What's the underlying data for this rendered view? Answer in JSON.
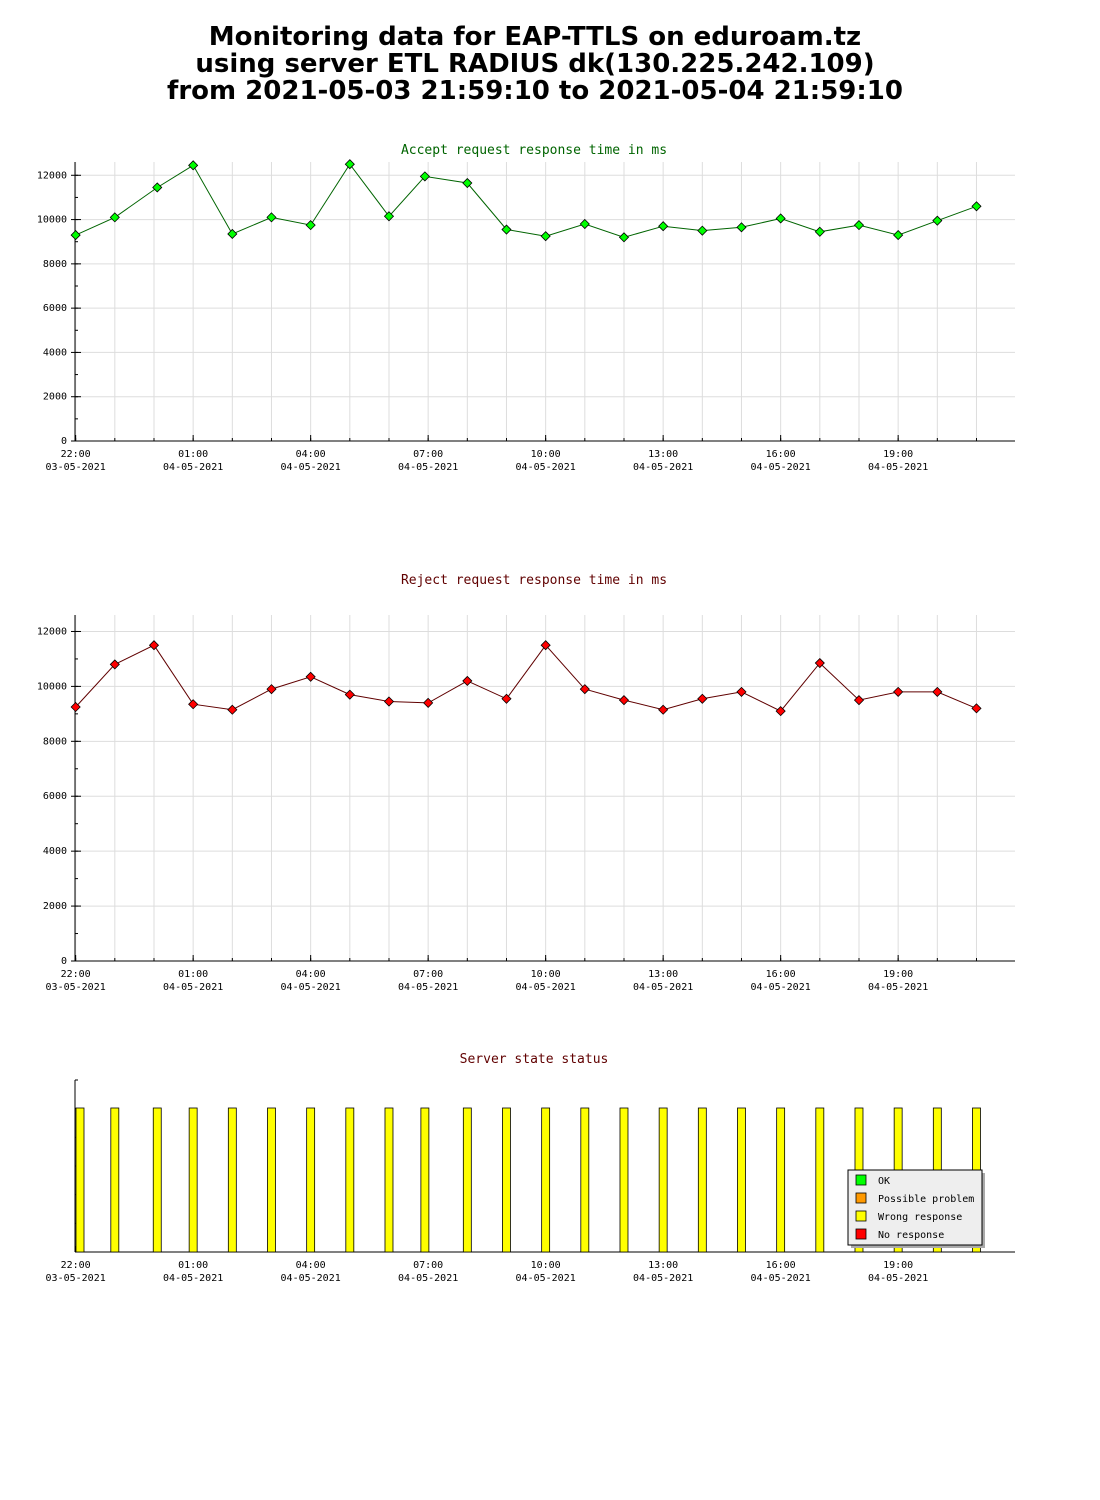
{
  "title": {
    "line1": "Monitoring data for EAP-TTLS on eduroam.tz",
    "line2": "using server ETL RADIUS dk(130.225.242.109)",
    "line3": "from 2021-05-03 21:59:10 to 2021-05-04 21:59:10"
  },
  "colors": {
    "accept_series": "#006400",
    "accept_marker": "#00ff00",
    "reject_series": "#600000",
    "reject_marker": "#ff0000",
    "status_bar": "#ffff00",
    "grid": "#dddddd"
  },
  "x_ticks": [
    {
      "time": "22:00",
      "date": "03-05-2021"
    },
    {
      "time": "01:00",
      "date": "04-05-2021"
    },
    {
      "time": "04:00",
      "date": "04-05-2021"
    },
    {
      "time": "07:00",
      "date": "04-05-2021"
    },
    {
      "time": "10:00",
      "date": "04-05-2021"
    },
    {
      "time": "13:00",
      "date": "04-05-2021"
    },
    {
      "time": "16:00",
      "date": "04-05-2021"
    },
    {
      "time": "19:00",
      "date": "04-05-2021"
    }
  ],
  "chart_data": [
    {
      "type": "line",
      "title": "Accept request response time in ms",
      "x_range": [
        "2021-05-03 21:59",
        "2021-05-04 21:59"
      ],
      "ylim": [
        0,
        12600
      ],
      "y_ticks": [
        0,
        2000,
        4000,
        6000,
        8000,
        10000,
        12000
      ],
      "grid": true,
      "series": [
        {
          "points": [
            {
              "t": "2021-05-03 22:00",
              "y": 9300
            },
            {
              "t": "2021-05-03 23:00",
              "y": 10100
            },
            {
              "t": "2021-05-04 00:05",
              "y": 11450
            },
            {
              "t": "2021-05-04 01:00",
              "y": 12450
            },
            {
              "t": "2021-05-04 02:00",
              "y": 9350
            },
            {
              "t": "2021-05-04 03:00",
              "y": 10100
            },
            {
              "t": "2021-05-04 04:00",
              "y": 9750
            },
            {
              "t": "2021-05-04 05:00",
              "y": 12500
            },
            {
              "t": "2021-05-04 06:00",
              "y": 10150
            },
            {
              "t": "2021-05-04 06:55",
              "y": 11950
            },
            {
              "t": "2021-05-04 08:00",
              "y": 11650
            },
            {
              "t": "2021-05-04 09:00",
              "y": 9550
            },
            {
              "t": "2021-05-04 10:00",
              "y": 9250
            },
            {
              "t": "2021-05-04 11:00",
              "y": 9800
            },
            {
              "t": "2021-05-04 12:00",
              "y": 9200
            },
            {
              "t": "2021-05-04 13:00",
              "y": 9700
            },
            {
              "t": "2021-05-04 14:00",
              "y": 9500
            },
            {
              "t": "2021-05-04 15:00",
              "y": 9650
            },
            {
              "t": "2021-05-04 16:00",
              "y": 10050
            },
            {
              "t": "2021-05-04 17:00",
              "y": 9450
            },
            {
              "t": "2021-05-04 18:00",
              "y": 9750
            },
            {
              "t": "2021-05-04 19:00",
              "y": 9300
            },
            {
              "t": "2021-05-04 20:00",
              "y": 9950
            },
            {
              "t": "2021-05-04 21:00",
              "y": 10600
            }
          ]
        }
      ]
    },
    {
      "type": "line",
      "title": "Reject request response time in ms",
      "x_range": [
        "2021-05-03 21:59",
        "2021-05-04 21:59"
      ],
      "ylim": [
        0,
        12600
      ],
      "y_ticks": [
        0,
        2000,
        4000,
        6000,
        8000,
        10000,
        12000
      ],
      "grid": true,
      "series": [
        {
          "points": [
            {
              "t": "2021-05-03 22:00",
              "y": 9250
            },
            {
              "t": "2021-05-03 23:00",
              "y": 10800
            },
            {
              "t": "2021-05-04 00:00",
              "y": 11500
            },
            {
              "t": "2021-05-04 01:00",
              "y": 9350
            },
            {
              "t": "2021-05-04 02:00",
              "y": 9150
            },
            {
              "t": "2021-05-04 03:00",
              "y": 9900
            },
            {
              "t": "2021-05-04 04:00",
              "y": 10350
            },
            {
              "t": "2021-05-04 05:00",
              "y": 9700
            },
            {
              "t": "2021-05-04 06:00",
              "y": 9450
            },
            {
              "t": "2021-05-04 07:00",
              "y": 9400
            },
            {
              "t": "2021-05-04 08:00",
              "y": 10200
            },
            {
              "t": "2021-05-04 09:00",
              "y": 9550
            },
            {
              "t": "2021-05-04 10:00",
              "y": 11500
            },
            {
              "t": "2021-05-04 11:00",
              "y": 9900
            },
            {
              "t": "2021-05-04 12:00",
              "y": 9500
            },
            {
              "t": "2021-05-04 13:00",
              "y": 9150
            },
            {
              "t": "2021-05-04 14:00",
              "y": 9550
            },
            {
              "t": "2021-05-04 15:00",
              "y": 9800
            },
            {
              "t": "2021-05-04 16:00",
              "y": 9100
            },
            {
              "t": "2021-05-04 17:00",
              "y": 10850
            },
            {
              "t": "2021-05-04 18:00",
              "y": 9500
            },
            {
              "t": "2021-05-04 19:00",
              "y": 9800
            },
            {
              "t": "2021-05-04 20:00",
              "y": 9800
            },
            {
              "t": "2021-05-04 21:00",
              "y": 9200
            }
          ]
        }
      ]
    },
    {
      "type": "bar",
      "title": "Server state status",
      "x_range": [
        "2021-05-03 21:59",
        "2021-05-04 21:59"
      ],
      "legend_position": "bottom-right",
      "legend": [
        {
          "label": "OK",
          "color": "#00ff00"
        },
        {
          "label": "Possible problem",
          "color": "#ff9900"
        },
        {
          "label": "Wrong response",
          "color": "#ffff00"
        },
        {
          "label": "No response",
          "color": "#ff0000"
        }
      ],
      "bars": [
        {
          "t": "2021-05-03 22:00",
          "state": "Wrong response"
        },
        {
          "t": "2021-05-03 23:00",
          "state": "Wrong response"
        },
        {
          "t": "2021-05-04 00:05",
          "state": "Wrong response"
        },
        {
          "t": "2021-05-04 01:00",
          "state": "Wrong response"
        },
        {
          "t": "2021-05-04 02:00",
          "state": "Wrong response"
        },
        {
          "t": "2021-05-04 03:00",
          "state": "Wrong response"
        },
        {
          "t": "2021-05-04 04:00",
          "state": "Wrong response"
        },
        {
          "t": "2021-05-04 05:00",
          "state": "Wrong response"
        },
        {
          "t": "2021-05-04 06:00",
          "state": "Wrong response"
        },
        {
          "t": "2021-05-04 06:55",
          "state": "Wrong response"
        },
        {
          "t": "2021-05-04 08:00",
          "state": "Wrong response"
        },
        {
          "t": "2021-05-04 09:00",
          "state": "Wrong response"
        },
        {
          "t": "2021-05-04 10:00",
          "state": "Wrong response"
        },
        {
          "t": "2021-05-04 11:00",
          "state": "Wrong response"
        },
        {
          "t": "2021-05-04 12:00",
          "state": "Wrong response"
        },
        {
          "t": "2021-05-04 13:00",
          "state": "Wrong response"
        },
        {
          "t": "2021-05-04 14:00",
          "state": "Wrong response"
        },
        {
          "t": "2021-05-04 15:00",
          "state": "Wrong response"
        },
        {
          "t": "2021-05-04 16:00",
          "state": "Wrong response"
        },
        {
          "t": "2021-05-04 17:00",
          "state": "Wrong response"
        },
        {
          "t": "2021-05-04 18:00",
          "state": "Wrong response"
        },
        {
          "t": "2021-05-04 19:00",
          "state": "Wrong response"
        },
        {
          "t": "2021-05-04 20:00",
          "state": "Wrong response"
        },
        {
          "t": "2021-05-04 21:00",
          "state": "Wrong response"
        }
      ]
    }
  ]
}
